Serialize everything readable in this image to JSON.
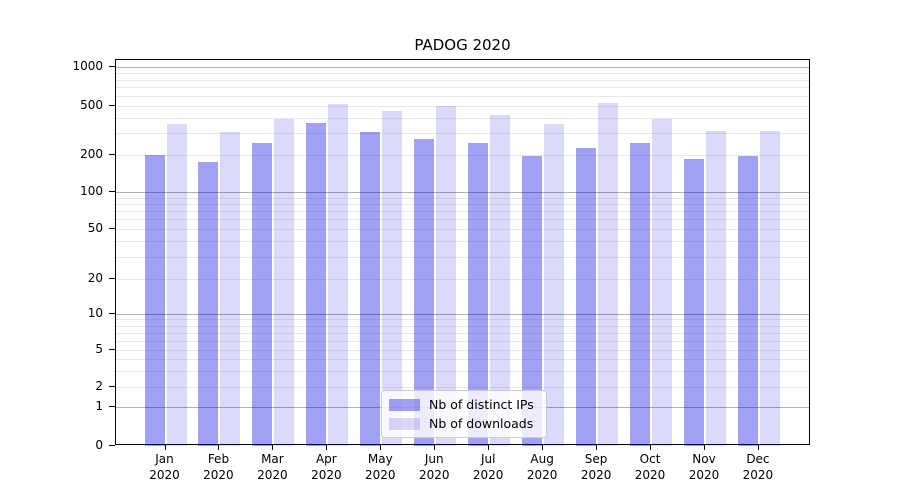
{
  "title": "PADOG 2020",
  "colors": {
    "distinct_ips_fill": "rgba(0,0,222,0.37)",
    "downloads_fill": "rgba(0,0,222,0.15)",
    "major_gridline": "#b0b0b0",
    "minor_gridline": "#e9e9e9",
    "axis": "#000000",
    "text": "#000000",
    "legend_border": "#cccccc",
    "legend_background": "rgba(255,255,255,0.8)"
  },
  "chart_data": {
    "type": "bar",
    "title": "PADOG 2020",
    "categories": [
      "Jan 2020",
      "Feb 2020",
      "Mar 2020",
      "Apr 2020",
      "May 2020",
      "Jun 2020",
      "Jul 2020",
      "Aug 2020",
      "Sep 2020",
      "Oct 2020",
      "Nov 2020",
      "Dec 2020"
    ],
    "xaxis": {
      "months": [
        "Jan",
        "Feb",
        "Mar",
        "Apr",
        "May",
        "Jun",
        "Jul",
        "Aug",
        "Sep",
        "Oct",
        "Nov",
        "Dec"
      ],
      "year_line": "2020"
    },
    "series": [
      {
        "name": "Nb of distinct IPs",
        "values": [
          200,
          176,
          250,
          364,
          310,
          270,
          252,
          195,
          230,
          250,
          184,
          198
        ]
      },
      {
        "name": "Nb of downloads",
        "values": [
          358,
          305,
          390,
          520,
          458,
          500,
          422,
          355,
          530,
          390,
          313,
          316
        ]
      }
    ],
    "yscale": "symlog",
    "ylim": [
      0,
      1100
    ],
    "y_ticks": [
      0,
      1,
      2,
      5,
      10,
      20,
      50,
      100,
      200,
      500,
      1000
    ],
    "y_major_gridlines": [
      1,
      10,
      100,
      1000
    ],
    "y_minor_gridlines": [
      2,
      3,
      4,
      5,
      6,
      7,
      8,
      9,
      20,
      30,
      40,
      50,
      60,
      70,
      80,
      90,
      200,
      300,
      400,
      500,
      600,
      700,
      800,
      900
    ],
    "grid": true,
    "legend_position": "lower center"
  }
}
